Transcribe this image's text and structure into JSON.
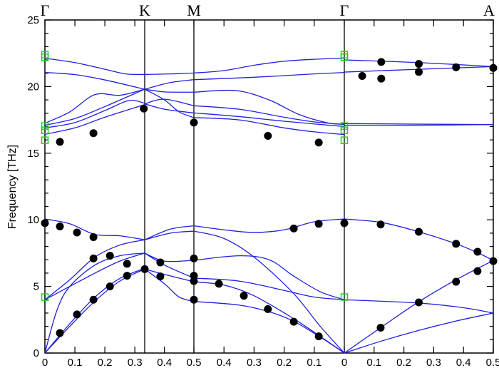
{
  "chart_data": {
    "type": "line",
    "title": "",
    "ylabel": "Frequency  [THz]",
    "xlabel": "",
    "ylim": [
      0,
      25
    ],
    "y_ticks": [
      "0",
      "5",
      "10",
      "15",
      "20",
      "25"
    ],
    "grid": false,
    "colors": {
      "bands": "#2020e0",
      "experiment": "#000000",
      "gamma_points": "#22cc22",
      "axes": "#000000"
    },
    "symmetry_points": [
      "Γ",
      "K",
      "M",
      "Γ",
      "A"
    ],
    "segments": [
      {
        "name": "Γ-K",
        "q_range": [
          0,
          0.333
        ],
        "tick_labels": [
          [
            "0",
            0
          ],
          [
            "0.1",
            0.1
          ],
          [
            "0.2",
            0.2
          ],
          [
            "0.3",
            0.3
          ]
        ],
        "bands": [
          [
            [
              0,
              0
            ],
            [
              0.083,
              2.0
            ],
            [
              0.167,
              3.9
            ],
            [
              0.25,
              5.4
            ],
            [
              0.333,
              6.3
            ]
          ],
          [
            [
              0,
              0
            ],
            [
              0.083,
              2.2
            ],
            [
              0.167,
              4.2
            ],
            [
              0.25,
              5.6
            ],
            [
              0.333,
              6.35
            ]
          ],
          [
            [
              0,
              0
            ],
            [
              0.04,
              3.2
            ],
            [
              0.083,
              5.0
            ],
            [
              0.167,
              6.6
            ],
            [
              0.25,
              7.3
            ],
            [
              0.333,
              7.5
            ]
          ],
          [
            [
              0,
              4.0
            ],
            [
              0.083,
              5.0
            ],
            [
              0.167,
              6.0
            ],
            [
              0.25,
              6.9
            ],
            [
              0.333,
              7.5
            ]
          ],
          [
            [
              0,
              4.0
            ],
            [
              0.083,
              5.5
            ],
            [
              0.167,
              7.2
            ],
            [
              0.25,
              8.1
            ],
            [
              0.333,
              8.5
            ]
          ],
          [
            [
              0,
              10.06
            ],
            [
              0.083,
              9.7
            ],
            [
              0.167,
              8.9
            ],
            [
              0.25,
              8.8
            ],
            [
              0.333,
              8.5
            ]
          ],
          [
            [
              0,
              16.42
            ],
            [
              0.1,
              16.9
            ],
            [
              0.2,
              17.7
            ],
            [
              0.333,
              18.65
            ]
          ],
          [
            [
              0,
              16.9
            ],
            [
              0.1,
              17.3
            ],
            [
              0.2,
              18.2
            ],
            [
              0.28,
              18.95
            ],
            [
              0.333,
              18.75
            ]
          ],
          [
            [
              0,
              17.1
            ],
            [
              0.1,
              17.6
            ],
            [
              0.2,
              18.5
            ],
            [
              0.333,
              19.8
            ]
          ],
          [
            [
              0,
              17.25
            ],
            [
              0.083,
              18.1
            ],
            [
              0.167,
              19.4
            ],
            [
              0.25,
              19.35
            ],
            [
              0.333,
              19.8
            ]
          ],
          [
            [
              0,
              21.06
            ],
            [
              0.1,
              20.9
            ],
            [
              0.2,
              20.5
            ],
            [
              0.333,
              19.8
            ]
          ],
          [
            [
              0,
              22.13
            ],
            [
              0.1,
              21.8
            ],
            [
              0.2,
              21.3
            ],
            [
              0.27,
              20.95
            ],
            [
              0.333,
              20.91
            ]
          ]
        ],
        "experiment": [
          [
            0,
            9.75
          ],
          [
            0.05,
            9.5
          ],
          [
            0.107,
            9.05
          ],
          [
            0.162,
            8.7
          ],
          [
            0.162,
            7.1
          ],
          [
            0.217,
            7.3
          ],
          [
            0.274,
            6.7
          ],
          [
            0.333,
            6.3
          ],
          [
            0.274,
            5.8
          ],
          [
            0.217,
            5.0
          ],
          [
            0.162,
            4.0
          ],
          [
            0.107,
            2.9
          ],
          [
            0.05,
            1.5
          ],
          [
            0.05,
            15.85
          ],
          [
            0.162,
            16.5
          ],
          [
            0.33,
            18.35
          ]
        ]
      },
      {
        "name": "K-M",
        "q_range": [
          0.333,
          0.5
        ],
        "tick_labels": [
          [
            "0.4",
            0.4
          ],
          [
            "0.5",
            0.5
          ]
        ],
        "bands": [
          [
            [
              0.333,
              6.3
            ],
            [
              0.4,
              5.9
            ],
            [
              0.5,
              5.35
            ]
          ],
          [
            [
              0.333,
              6.3
            ],
            [
              0.4,
              5.2
            ],
            [
              0.45,
              4.2
            ],
            [
              0.5,
              3.87
            ]
          ],
          [
            [
              0.333,
              7.5
            ],
            [
              0.4,
              6.9
            ],
            [
              0.5,
              6.96
            ]
          ],
          [
            [
              0.333,
              7.5
            ],
            [
              0.4,
              6.6
            ],
            [
              0.5,
              5.62
            ]
          ],
          [
            [
              0.333,
              8.5
            ],
            [
              0.42,
              9.3
            ],
            [
              0.5,
              9.55
            ]
          ],
          [
            [
              0.333,
              8.5
            ],
            [
              0.42,
              9.0
            ],
            [
              0.5,
              9.15
            ]
          ],
          [
            [
              0.333,
              20.91
            ],
            [
              0.42,
              20.95
            ],
            [
              0.5,
              21.02
            ]
          ],
          [
            [
              0.333,
              19.8
            ],
            [
              0.42,
              20.3
            ],
            [
              0.5,
              20.52
            ]
          ],
          [
            [
              0.333,
              19.8
            ],
            [
              0.4,
              19.6
            ],
            [
              0.5,
              19.58
            ]
          ],
          [
            [
              0.333,
              19.8
            ],
            [
              0.4,
              19.0
            ],
            [
              0.45,
              18.1
            ],
            [
              0.5,
              17.67
            ]
          ],
          [
            [
              0.333,
              18.7
            ],
            [
              0.4,
              19.05
            ],
            [
              0.5,
              18.56
            ]
          ],
          [
            [
              0.333,
              18.7
            ],
            [
              0.4,
              18.3
            ],
            [
              0.5,
              18.02
            ]
          ]
        ],
        "experiment": [
          [
            0.386,
            6.8
          ],
          [
            0.386,
            5.75
          ],
          [
            0.5,
            7.1
          ],
          [
            0.5,
            5.8
          ],
          [
            0.5,
            5.4
          ],
          [
            0.5,
            4.0
          ],
          [
            0.5,
            17.3
          ]
        ]
      },
      {
        "name": "M-Γ",
        "q_range": [
          0.5,
          0
        ],
        "tick_labels": [
          [
            "0.4",
            0.4
          ],
          [
            "0.3",
            0.3
          ],
          [
            "0.2",
            0.2
          ],
          [
            "0.1",
            0.1
          ],
          [
            "0",
            0
          ]
        ],
        "bands": [
          [
            [
              0.5,
              3.87
            ],
            [
              0.35,
              3.6
            ],
            [
              0.25,
              3.1
            ],
            [
              0.17,
              2.4
            ],
            [
              0.08,
              1.2
            ],
            [
              0,
              0
            ]
          ],
          [
            [
              0.5,
              5.35
            ],
            [
              0.4,
              5.1
            ],
            [
              0.3,
              4.3
            ],
            [
              0.17,
              2.6
            ],
            [
              0.08,
              1.25
            ],
            [
              0,
              0
            ]
          ],
          [
            [
              0.5,
              5.62
            ],
            [
              0.35,
              5.4
            ],
            [
              0.2,
              4.7
            ],
            [
              0.1,
              4.2
            ],
            [
              0,
              4.0
            ]
          ],
          [
            [
              0.5,
              6.96
            ],
            [
              0.35,
              7.3
            ],
            [
              0.25,
              7.0
            ],
            [
              0.17,
              5.8
            ],
            [
              0.08,
              4.6
            ],
            [
              0,
              4.0
            ]
          ],
          [
            [
              0.5,
              9.15
            ],
            [
              0.4,
              8.6
            ],
            [
              0.3,
              7.2
            ],
            [
              0.17,
              4.5
            ],
            [
              0.08,
              2.0
            ],
            [
              0,
              0
            ]
          ],
          [
            [
              0.5,
              9.55
            ],
            [
              0.4,
              9.25
            ],
            [
              0.3,
              9.05
            ],
            [
              0.2,
              9.25
            ],
            [
              0.1,
              9.85
            ],
            [
              0,
              10.06
            ]
          ],
          [
            [
              0.5,
              17.67
            ],
            [
              0.35,
              17.5
            ],
            [
              0.2,
              16.9
            ],
            [
              0.1,
              16.6
            ],
            [
              0,
              16.4
            ]
          ],
          [
            [
              0.5,
              18.02
            ],
            [
              0.35,
              17.75
            ],
            [
              0.2,
              17.4
            ],
            [
              0,
              17.0
            ]
          ],
          [
            [
              0.5,
              18.56
            ],
            [
              0.35,
              18.3
            ],
            [
              0.2,
              17.7
            ],
            [
              0.1,
              17.35
            ],
            [
              0,
              17.15
            ]
          ],
          [
            [
              0.5,
              19.58
            ],
            [
              0.36,
              19.7
            ],
            [
              0.25,
              19.0
            ],
            [
              0.15,
              17.9
            ],
            [
              0.05,
              17.25
            ],
            [
              0,
              17.2
            ]
          ],
          [
            [
              0.5,
              20.52
            ],
            [
              0.3,
              20.7
            ],
            [
              0.1,
              20.95
            ],
            [
              0,
              21.06
            ]
          ],
          [
            [
              0.5,
              21.02
            ],
            [
              0.4,
              21.2
            ],
            [
              0.3,
              21.6
            ],
            [
              0.2,
              21.9
            ],
            [
              0.1,
              22.05
            ],
            [
              0,
              22.13
            ]
          ]
        ],
        "experiment": [
          [
            0.417,
            5.2
          ],
          [
            0.334,
            4.3
          ],
          [
            0.254,
            3.3
          ],
          [
            0.168,
            2.35
          ],
          [
            0.085,
            1.25
          ],
          [
            0.254,
            16.3
          ],
          [
            0.085,
            15.8
          ],
          [
            0.168,
            9.35
          ],
          [
            0.085,
            9.7
          ],
          [
            0,
            9.75
          ]
        ]
      },
      {
        "name": "Γ-A",
        "q_range": [
          0,
          0.5
        ],
        "tick_labels": [
          [
            "0.1",
            0.1
          ],
          [
            "0.2",
            0.2
          ],
          [
            "0.3",
            0.3
          ],
          [
            "0.4",
            0.4
          ],
          [
            "0.5",
            0.5
          ]
        ],
        "bands": [
          [
            [
              0,
              0
            ],
            [
              0.125,
              0.9
            ],
            [
              0.25,
              1.7
            ],
            [
              0.375,
              2.4
            ],
            [
              0.5,
              3.0
            ]
          ],
          [
            [
              0,
              0
            ],
            [
              0.125,
              1.95
            ],
            [
              0.25,
              3.85
            ],
            [
              0.375,
              5.5
            ],
            [
              0.5,
              6.95
            ]
          ],
          [
            [
              0,
              4.0
            ],
            [
              0.25,
              3.75
            ],
            [
              0.4,
              3.4
            ],
            [
              0.5,
              3.0
            ]
          ],
          [
            [
              0,
              10.06
            ],
            [
              0.125,
              9.8
            ],
            [
              0.25,
              9.1
            ],
            [
              0.375,
              8.2
            ],
            [
              0.45,
              7.5
            ],
            [
              0.5,
              6.95
            ]
          ],
          [
            [
              0,
              17.22
            ],
            [
              0.5,
              17.15
            ]
          ],
          [
            [
              0,
              17.1
            ],
            [
              0.25,
              17.1
            ],
            [
              0.5,
              17.15
            ]
          ],
          [
            [
              0,
              21.09
            ],
            [
              0.25,
              21.3
            ],
            [
              0.5,
              21.5
            ]
          ],
          [
            [
              0,
              22.0
            ],
            [
              0.25,
              21.8
            ],
            [
              0.5,
              21.5
            ]
          ]
        ],
        "experiment": [
          [
            0.122,
            1.9
          ],
          [
            0.25,
            3.8
          ],
          [
            0.375,
            5.35
          ],
          [
            0.447,
            6.15
          ],
          [
            0.122,
            9.65
          ],
          [
            0.25,
            9.1
          ],
          [
            0.375,
            8.2
          ],
          [
            0.447,
            7.6
          ],
          [
            0.5,
            6.9
          ],
          [
            0.06,
            20.8
          ],
          [
            0.124,
            21.85
          ],
          [
            0.124,
            20.6
          ],
          [
            0.25,
            21.7
          ],
          [
            0.25,
            21.1
          ],
          [
            0.375,
            21.45
          ],
          [
            0.5,
            21.4
          ]
        ]
      }
    ],
    "gamma_point_markers": [
      22.4,
      22.2,
      17.04,
      16.72,
      15.97,
      4.2
    ]
  }
}
